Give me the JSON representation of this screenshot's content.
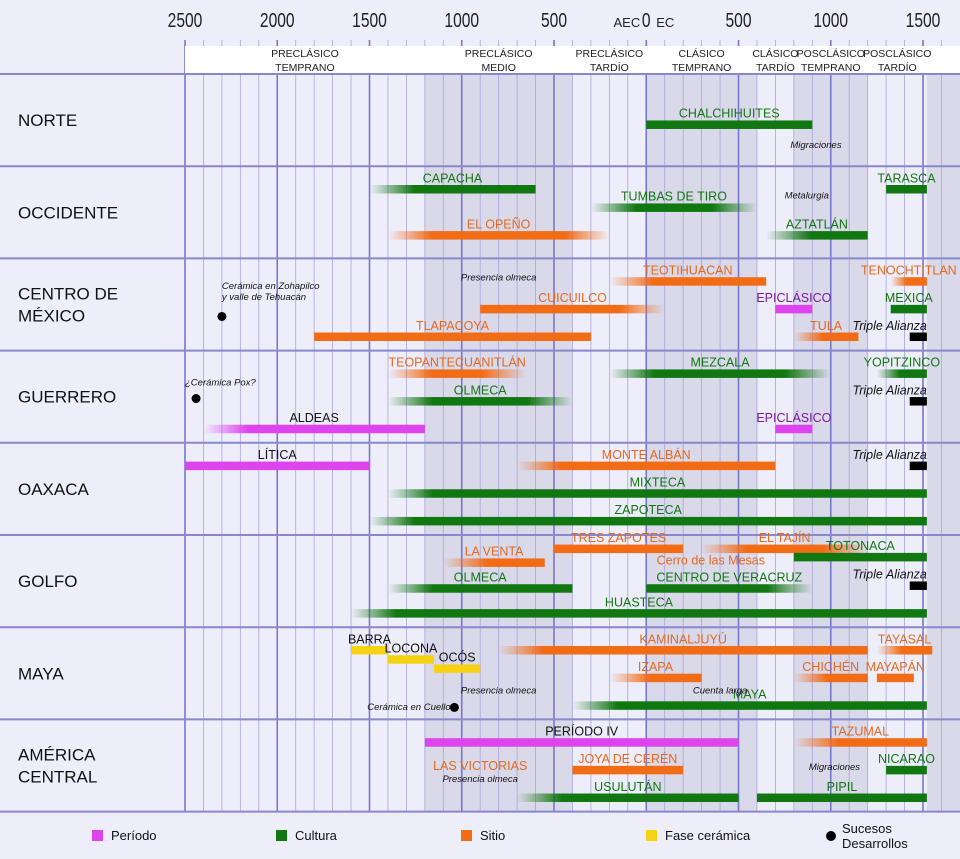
{
  "axis": {
    "ticks": [
      {
        "label": "2500",
        "year": -2500
      },
      {
        "label": "2000",
        "year": -2000
      },
      {
        "label": "1500",
        "year": -1500
      },
      {
        "label": "1000",
        "year": -1000
      },
      {
        "label": "500",
        "year": -500
      },
      {
        "label": "0",
        "year": 0
      },
      {
        "label": "500",
        "year": 500
      },
      {
        "label": "1000",
        "year": 1000
      },
      {
        "label": "1500",
        "year": 1500
      }
    ],
    "era_before": "AEC",
    "era_after": "EC"
  },
  "periods": [
    {
      "line1": "PRECLÁSICO",
      "line2": "TEMPRANO",
      "from": -2500,
      "to": -1200
    },
    {
      "line1": "PRECLÁSICO",
      "line2": "MEDIO",
      "from": -1200,
      "to": -400
    },
    {
      "line1": "PRECLÁSICO",
      "line2": "TARDÍO",
      "from": -400,
      "to": 0
    },
    {
      "line1": "CLÁSICO",
      "line2": "TEMPRANO",
      "from": 0,
      "to": 600
    },
    {
      "line1": "CLÁSICO",
      "line2": "TARDÍO",
      "from": 600,
      "to": 800
    },
    {
      "line1": "POSCLÁSICO",
      "line2": "TEMPRANO",
      "from": 800,
      "to": 1200
    },
    {
      "line1": "POSCLÁSICO",
      "line2": "TARDÍO",
      "from": 1200,
      "to": 1521
    }
  ],
  "colors": {
    "period": "#dd44ee",
    "culture": "#117711",
    "site": "#f26b15",
    "ceramic": "#f5d312",
    "event": "#000000",
    "alliance": "#000000"
  },
  "regions": [
    {
      "name": "NORTE",
      "bars": [
        {
          "kind": "culture",
          "from": 0,
          "to": 900,
          "lane": 0.55,
          "label": "CHALCHIHUITES"
        }
      ],
      "notes": [
        {
          "text": "Migraciones",
          "year": 920,
          "lane": 0.8,
          "anchor": "middle"
        }
      ],
      "dots": []
    },
    {
      "name": "OCCIDENTE",
      "bars": [
        {
          "kind": "culture",
          "from": -1500,
          "to": -600,
          "lane": 0.25,
          "label": "CAPACHA",
          "fadeL": 1
        },
        {
          "kind": "culture",
          "from": -300,
          "to": 600,
          "lane": 0.45,
          "label": "TUMBAS DE TIRO",
          "fadeL": 1,
          "fadeR": 1
        },
        {
          "kind": "culture",
          "from": 1300,
          "to": 1521,
          "lane": 0.25,
          "label": "TARASCA"
        },
        {
          "kind": "site",
          "from": -1400,
          "to": -200,
          "lane": 0.75,
          "label": "EL OPEÑO",
          "fadeL": 1,
          "fadeR": 1
        },
        {
          "kind": "culture",
          "from": 650,
          "to": 1200,
          "lane": 0.75,
          "label": "AZTATLÁN",
          "fadeL": 1
        }
      ],
      "notes": [
        {
          "text": "Metalurgia",
          "year": 870,
          "lane": 0.35,
          "anchor": "middle"
        }
      ],
      "dots": []
    },
    {
      "name": "CENTRO DE\nMÉXICO",
      "bars": [
        {
          "kind": "site",
          "from": -200,
          "to": 650,
          "lane": 0.25,
          "label": "TEOTIHUACAN",
          "fadeL": 1
        },
        {
          "kind": "site",
          "from": 1325,
          "to": 1521,
          "lane": 0.25,
          "label": "TENOCHTITLAN",
          "fadeL": 1
        },
        {
          "kind": "site",
          "from": -900,
          "to": 100,
          "lane": 0.55,
          "label": "CUICUILCO",
          "fadeR": 1
        },
        {
          "kind": "period",
          "from": 700,
          "to": 900,
          "lane": 0.55,
          "label": "EPICLÁSICO"
        },
        {
          "kind": "culture",
          "from": 1325,
          "to": 1521,
          "lane": 0.55,
          "label": "MEXICA"
        },
        {
          "kind": "site",
          "from": -1800,
          "to": -300,
          "lane": 0.85,
          "label": "TLAPACOYA"
        },
        {
          "kind": "site",
          "from": 800,
          "to": 1150,
          "lane": 0.85,
          "label": "TULA",
          "fadeL": 1
        },
        {
          "kind": "alliance",
          "from": 1428,
          "to": 1521,
          "lane": 0.85,
          "label": "Triple Alianza"
        }
      ],
      "notes": [
        {
          "text": "Presencia olmeca",
          "year": -800,
          "lane": 0.24,
          "anchor": "middle"
        },
        {
          "text": "Cerámica en Zohapilco",
          "year": -2300,
          "lane": 0.33,
          "anchor": "start"
        },
        {
          "text": "y valle de Tehuacán",
          "year": -2300,
          "lane": 0.45,
          "anchor": "start"
        }
      ],
      "dots": [
        {
          "year": -2300,
          "lane": 0.63
        }
      ]
    },
    {
      "name": "GUERRERO",
      "bars": [
        {
          "kind": "site",
          "from": -1400,
          "to": -650,
          "lane": 0.25,
          "label": "TEOPANTECUANITLÁN",
          "fadeL": 1,
          "fadeR": 1
        },
        {
          "kind": "culture",
          "from": -200,
          "to": 1000,
          "lane": 0.25,
          "label": "MEZCALA",
          "fadeL": 1,
          "fadeR": 1
        },
        {
          "kind": "culture",
          "from": 1250,
          "to": 1521,
          "lane": 0.25,
          "label": "YOPITZINCO",
          "fadeL": 1
        },
        {
          "kind": "culture",
          "from": -1400,
          "to": -400,
          "lane": 0.55,
          "label": "OLMECA",
          "fadeL": 1,
          "fadeR": 1
        },
        {
          "kind": "alliance",
          "from": 1428,
          "to": 1521,
          "lane": 0.55,
          "label": "Triple Alianza"
        },
        {
          "kind": "period",
          "from": -2400,
          "to": -1200,
          "lane": 0.85,
          "label": "ALDEAS",
          "fadeL": 1
        },
        {
          "kind": "period",
          "from": 700,
          "to": 900,
          "lane": 0.85,
          "label": "EPICLÁSICO"
        }
      ],
      "notes": [
        {
          "text": "¿Cerámica Pox?",
          "year": -2500,
          "lane": 0.38,
          "anchor": "start"
        }
      ],
      "dots": [
        {
          "year": -2440,
          "lane": 0.52
        }
      ]
    },
    {
      "name": "OAXACA",
      "bars": [
        {
          "kind": "period",
          "from": -2500,
          "to": -1500,
          "lane": 0.25,
          "label": "LÍTICA"
        },
        {
          "kind": "site",
          "from": -700,
          "to": 700,
          "lane": 0.25,
          "label": "MONTE ALBÁN",
          "fadeL": 1
        },
        {
          "kind": "alliance",
          "from": 1428,
          "to": 1521,
          "lane": 0.25,
          "label": "Triple Alianza"
        },
        {
          "kind": "culture",
          "from": -1400,
          "to": 1521,
          "lane": 0.55,
          "label": "MIXTECA",
          "fadeL": 1
        },
        {
          "kind": "culture",
          "from": -1500,
          "to": 1521,
          "lane": 0.85,
          "label": "ZAPOTECA",
          "fadeL": 1
        }
      ],
      "notes": [],
      "dots": []
    },
    {
      "name": "GOLFO",
      "bars": [
        {
          "kind": "site",
          "from": -500,
          "to": 200,
          "lane": 0.15,
          "label": "TRES ZAPOTES"
        },
        {
          "kind": "site",
          "from": 300,
          "to": 1200,
          "lane": 0.15,
          "label": "EL TAJÍN",
          "fadeL": 1,
          "fadeR": 1
        },
        {
          "kind": "culture",
          "from": 800,
          "to": 1521,
          "lane": 0.24,
          "label": "TOTONACA"
        },
        {
          "kind": "site",
          "from": -1100,
          "to": -550,
          "lane": 0.3,
          "label": "LA VENTA",
          "fadeL": 1
        },
        {
          "kind": "alliance",
          "from": 1428,
          "to": 1521,
          "lane": 0.55,
          "label": "Triple Alianza"
        },
        {
          "kind": "culture",
          "from": -1400,
          "to": -400,
          "lane": 0.58,
          "label": "OLMECA",
          "fadeL": 1
        },
        {
          "kind": "culture",
          "from": 0,
          "to": 900,
          "lane": 0.58,
          "label": "CENTRO DE VERACRUZ",
          "fadeR": 1
        },
        {
          "kind": "culture",
          "from": -1600,
          "to": 1521,
          "lane": 0.85,
          "label": "HUASTECA",
          "fadeL": 1
        }
      ],
      "notes": [
        {
          "text": "Cerro de las Mesas",
          "year": 350,
          "lane": 0.32,
          "anchor": "middle",
          "kind": "site"
        }
      ],
      "dots": []
    },
    {
      "name": "MAYA",
      "bars": [
        {
          "kind": "ceramic",
          "from": -1600,
          "to": -1400,
          "lane": 0.25,
          "label": "BARRA"
        },
        {
          "kind": "site",
          "from": -800,
          "to": 1200,
          "lane": 0.25,
          "label": "KAMINALJUYÚ",
          "fadeL": 1
        },
        {
          "kind": "site",
          "from": 1250,
          "to": 1550,
          "lane": 0.25,
          "label": "TAYASAL",
          "fadeL": 1
        },
        {
          "kind": "ceramic",
          "from": -1400,
          "to": -1150,
          "lane": 0.35,
          "label": "LOCONA"
        },
        {
          "kind": "ceramic",
          "from": -1150,
          "to": -900,
          "lane": 0.45,
          "label": "OCÓS"
        },
        {
          "kind": "site",
          "from": -200,
          "to": 300,
          "lane": 0.55,
          "label": "IZAPA",
          "fadeL": 1
        },
        {
          "kind": "site",
          "from": 800,
          "to": 1200,
          "lane": 0.55,
          "label": "CHICHÉN",
          "fadeL": 1
        },
        {
          "kind": "site",
          "from": 1250,
          "to": 1450,
          "lane": 0.55,
          "label": "MAYAPÁN"
        },
        {
          "kind": "culture",
          "from": -400,
          "to": 1521,
          "lane": 0.85,
          "label": "MAYA",
          "fadeL": 1
        }
      ],
      "notes": [
        {
          "text": "Presencia olmeca",
          "year": -800,
          "lane": 0.72,
          "anchor": "middle"
        },
        {
          "text": "Cuenta larga",
          "year": 400,
          "lane": 0.72,
          "anchor": "middle"
        },
        {
          "text": "Cerámica en Cuello",
          "year": -1060,
          "lane": 0.9,
          "anchor": "end"
        }
      ],
      "dots": [
        {
          "year": -1040,
          "lane": 0.87
        }
      ]
    },
    {
      "name": "AMÉRICA\nCENTRAL",
      "bars": [
        {
          "kind": "period",
          "from": -1200,
          "to": 500,
          "lane": 0.25,
          "label": "PERÍODO IV"
        },
        {
          "kind": "site",
          "from": 800,
          "to": 1521,
          "lane": 0.25,
          "label": "TAZUMAL",
          "fadeL": 1
        },
        {
          "kind": "site",
          "from": -400,
          "to": 200,
          "lane": 0.55,
          "label": "JOYA DE CERÉN"
        },
        {
          "kind": "culture",
          "from": 1300,
          "to": 1521,
          "lane": 0.55,
          "label": "NICARAO"
        },
        {
          "kind": "culture",
          "from": -700,
          "to": 500,
          "lane": 0.85,
          "label": "USULUTÁN",
          "fadeL": 1
        },
        {
          "kind": "culture",
          "from": 600,
          "to": 1521,
          "lane": 0.85,
          "label": "PIPIL"
        }
      ],
      "notes": [
        {
          "text": "LAS VICTORIAS",
          "year": -900,
          "lane": 0.55,
          "anchor": "middle",
          "kind": "site",
          "big": 1
        },
        {
          "text": "Presencia olmeca",
          "year": -900,
          "lane": 0.68,
          "anchor": "middle"
        },
        {
          "text": "Migraciones",
          "year": 1020,
          "lane": 0.55,
          "anchor": "middle"
        }
      ],
      "dots": []
    }
  ],
  "legend": {
    "period": "Período",
    "culture": "Cultura",
    "site": "Sitio",
    "ceramic": "Fase cerámica",
    "event_line1": "Sucesos",
    "event_line2": "Desarrollos"
  }
}
